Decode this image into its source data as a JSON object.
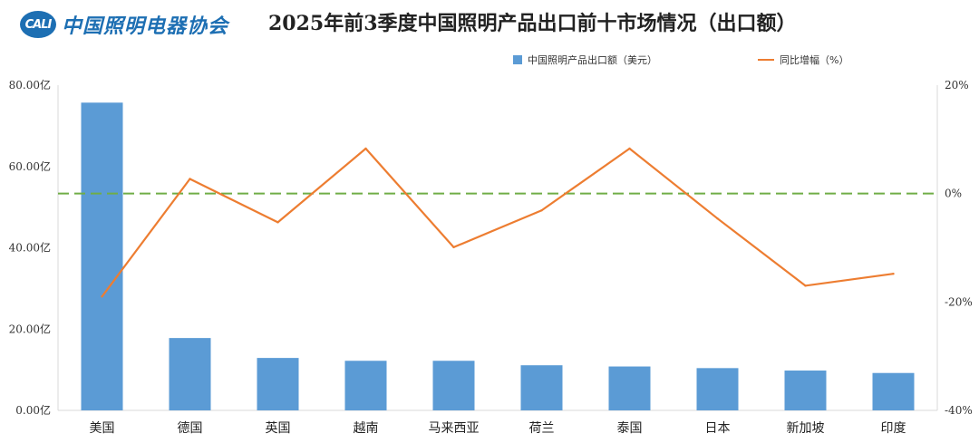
{
  "header": {
    "logo_badge": "CALI",
    "logo_text": "中国照明电器协会",
    "title": "2025年前3季度中国照明产品出口前十市场情况（出口额）"
  },
  "chart_data": {
    "type": "bar",
    "categories": [
      "美国",
      "德国",
      "英国",
      "越南",
      "马来西亚",
      "荷兰",
      "泰国",
      "日本",
      "新加坡",
      "印度"
    ],
    "series": [
      {
        "name": "中国照明产品出口额（美元）",
        "type": "bar",
        "axis": "left",
        "color": "#5b9bd5",
        "values": [
          75.7,
          17.8,
          12.9,
          12.2,
          12.2,
          11.1,
          10.8,
          10.4,
          9.8,
          9.2
        ]
      },
      {
        "name": "同比增幅（%）",
        "type": "line",
        "axis": "right",
        "color": "#ed7d31",
        "values": [
          -19,
          2.7,
          -5.3,
          8.3,
          -9.9,
          -3.1,
          8.3,
          -4.6,
          -17,
          -14.8
        ]
      }
    ],
    "y_left": {
      "min": 0,
      "max": 80,
      "ticks": [
        "0.00亿",
        "20.00亿",
        "40.00亿",
        "60.00亿",
        "80.00亿"
      ]
    },
    "y_right": {
      "min": -40,
      "max": 20,
      "ticks": [
        "-40%",
        "-20%",
        "0%",
        "20%"
      ]
    },
    "reference_line": {
      "axis": "right",
      "value": 0,
      "color": "#70ad47",
      "style": "dashed"
    },
    "legend_position": "top",
    "grid": false
  }
}
